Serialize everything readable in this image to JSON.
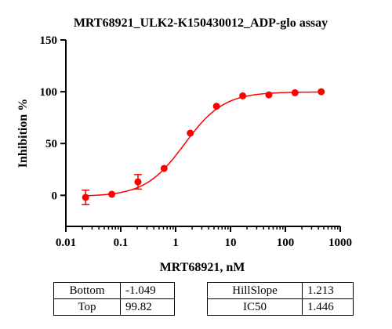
{
  "chart_data": {
    "type": "scatter",
    "title": "MRT68921_ULK2-K150430012_ADP-glo assay",
    "xlabel": "MRT68921, nM",
    "ylabel": "Inhibition %",
    "x_scale": "log",
    "xlim": [
      0.01,
      1000
    ],
    "ylim": [
      -30,
      150
    ],
    "x_ticks": [
      0.01,
      0.1,
      1,
      10,
      100,
      1000
    ],
    "x_tick_labels": [
      "0.01",
      "0.1",
      "1",
      "10",
      "100",
      "1000"
    ],
    "y_ticks": [
      0,
      50,
      100,
      150
    ],
    "y_tick_labels": [
      "0",
      "50",
      "100",
      "150"
    ],
    "grid": false,
    "series": [
      {
        "color": "#ff0000",
        "points": [
          {
            "x": 0.0229,
            "y": -2,
            "error": 7
          },
          {
            "x": 0.0686,
            "y": 1
          },
          {
            "x": 0.206,
            "y": 13,
            "error": 7
          },
          {
            "x": 0.617,
            "y": 26
          },
          {
            "x": 1.85,
            "y": 60
          },
          {
            "x": 5.56,
            "y": 86
          },
          {
            "x": 16.7,
            "y": 96
          },
          {
            "x": 50,
            "y": 97
          },
          {
            "x": 150,
            "y": 99
          },
          {
            "x": 450,
            "y": 100
          }
        ],
        "fit": {
          "model": "four-parameter logistic",
          "bottom": -1.049,
          "top": 99.82,
          "hillslope": 1.213,
          "ic50": 1.446
        }
      }
    ],
    "table": {
      "left": [
        {
          "name": "Bottom",
          "value": "-1.049"
        },
        {
          "name": "Top",
          "value": "99.82"
        }
      ],
      "right": [
        {
          "name": "HillSlope",
          "value": "1.213"
        },
        {
          "name": "IC50",
          "value": "1.446"
        }
      ]
    }
  }
}
